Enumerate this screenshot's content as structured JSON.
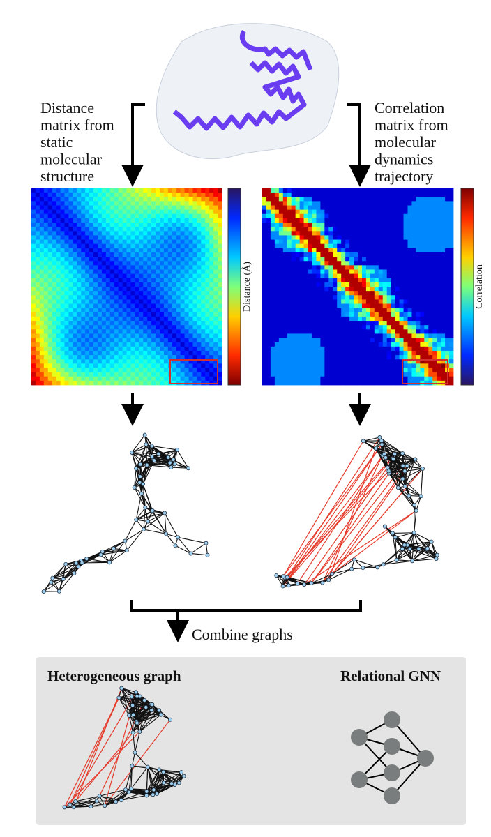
{
  "left_label": {
    "lines": [
      "Distance",
      "matrix from",
      "static",
      "molecular",
      "structure"
    ]
  },
  "right_label": {
    "lines": [
      "Correlation",
      "matrix from",
      "molecular",
      "dynamics",
      "trajectory"
    ]
  },
  "left_colorbar_label": "Distance (Å)",
  "right_colorbar_label": "Correlation",
  "combine_label": "Combine graphs",
  "bottom_panel": {
    "left_title": "Heterogeneous graph",
    "right_title": "Relational GNN"
  }
}
